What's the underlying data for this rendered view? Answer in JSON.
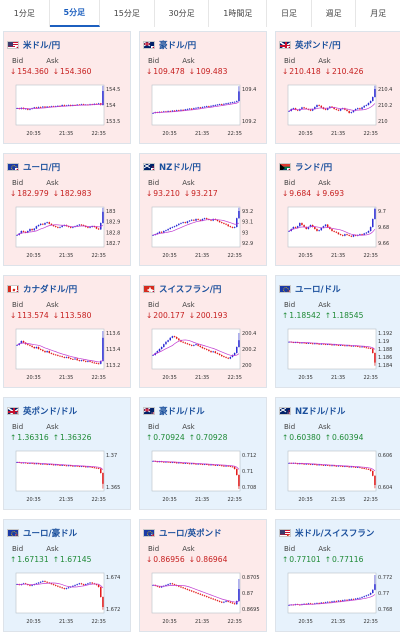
{
  "tabs": [
    {
      "label": "1分足",
      "active": false
    },
    {
      "label": "5分足",
      "active": true
    },
    {
      "label": "15分足",
      "active": false
    },
    {
      "label": "30分足",
      "active": false
    },
    {
      "label": "1時間足",
      "active": false
    },
    {
      "label": "日足",
      "active": false
    },
    {
      "label": "週足",
      "active": false
    },
    {
      "label": "月足",
      "active": false
    }
  ],
  "bid_label": "Bid",
  "ask_label": "Ask",
  "x_ticks": [
    "20:35",
    "21:35",
    "22:35"
  ],
  "colors": {
    "up_text": "#1f8a36",
    "down_text": "#c62020",
    "candle_up": "#2a2ad4",
    "candle_down": "#e21818",
    "ma": "#c03ad0"
  },
  "cards": [
    {
      "name": "米ドル/円",
      "bid": "154.360",
      "ask": "154.360",
      "direction": "down",
      "flag": "us-jp-flag-icon",
      "chart_data": {
        "type": "candlestick",
        "y_ticks": [
          "154.5",
          "154",
          "153.5"
        ],
        "ylim": [
          153.3,
          154.65
        ],
        "shape": [
          0.42,
          0.4,
          0.43,
          0.4,
          0.41,
          0.38,
          0.4,
          0.42,
          0.44,
          0.43,
          0.45,
          0.44,
          0.46,
          0.45,
          0.46,
          0.45,
          0.47,
          0.46,
          0.47,
          0.48,
          0.47,
          0.5,
          0.48,
          0.49,
          0.5,
          0.48,
          0.5,
          0.49,
          0.51,
          0.5,
          0.52,
          0.5,
          0.51,
          0.5,
          0.52,
          0.51,
          0.53,
          0.52,
          0.54,
          0.5,
          0.85
        ],
        "spike": 0.98
      }
    },
    {
      "name": "豪ドル/円",
      "bid": "109.478",
      "ask": "109.483",
      "direction": "down",
      "flag": "au-jp-flag-icon",
      "chart_data": {
        "type": "candlestick",
        "y_ticks": [
          "109.4",
          "109.2"
        ],
        "ylim": [
          109.05,
          109.6
        ],
        "shape": [
          0.3,
          0.32,
          0.31,
          0.33,
          0.32,
          0.34,
          0.33,
          0.35,
          0.34,
          0.36,
          0.35,
          0.37,
          0.36,
          0.38,
          0.37,
          0.39,
          0.4,
          0.41,
          0.4,
          0.42,
          0.43,
          0.44,
          0.43,
          0.45,
          0.46,
          0.47,
          0.46,
          0.48,
          0.49,
          0.5,
          0.51,
          0.52,
          0.51,
          0.53,
          0.54,
          0.55,
          0.56,
          0.57,
          0.58,
          0.6,
          0.84
        ],
        "spike": 0.97
      }
    },
    {
      "name": "英ポンド/円",
      "bid": "210.418",
      "ask": "210.426",
      "direction": "down",
      "flag": "gb-jp-flag-icon",
      "chart_data": {
        "type": "candlestick",
        "y_ticks": [
          "210.4",
          "210.2",
          "210"
        ],
        "ylim": [
          209.85,
          210.55
        ],
        "shape": [
          0.35,
          0.4,
          0.42,
          0.38,
          0.36,
          0.4,
          0.44,
          0.42,
          0.4,
          0.38,
          0.36,
          0.4,
          0.45,
          0.5,
          0.48,
          0.44,
          0.4,
          0.38,
          0.42,
          0.46,
          0.44,
          0.4,
          0.38,
          0.36,
          0.4,
          0.42,
          0.38,
          0.35,
          0.3,
          0.32,
          0.36,
          0.4,
          0.42,
          0.4,
          0.44,
          0.48,
          0.5,
          0.55,
          0.6,
          0.7,
          0.9
        ],
        "spike": 0.98
      }
    },
    {
      "name": "ユーロ/円",
      "bid": "182.979",
      "ask": "182.983",
      "direction": "down",
      "flag": "eu-jp-flag-icon",
      "chart_data": {
        "type": "candlestick",
        "y_ticks": [
          "183",
          "182.9",
          "182.8",
          "182.7"
        ],
        "ylim": [
          182.6,
          183.05
        ],
        "shape": [
          0.3,
          0.34,
          0.4,
          0.38,
          0.36,
          0.4,
          0.45,
          0.42,
          0.46,
          0.52,
          0.55,
          0.58,
          0.56,
          0.6,
          0.62,
          0.58,
          0.55,
          0.52,
          0.5,
          0.48,
          0.5,
          0.53,
          0.55,
          0.52,
          0.5,
          0.48,
          0.5,
          0.52,
          0.54,
          0.56,
          0.55,
          0.53,
          0.5,
          0.48,
          0.5,
          0.52,
          0.5,
          0.46,
          0.44,
          0.6,
          0.88
        ],
        "spike": 0.98
      }
    },
    {
      "name": "NZドル/円",
      "bid": "93.210",
      "ask": "93.217",
      "direction": "down",
      "flag": "nz-jp-flag-icon",
      "chart_data": {
        "type": "candlestick",
        "y_ticks": [
          "93.2",
          "93.1",
          "93",
          "92.9"
        ],
        "ylim": [
          92.82,
          93.27
        ],
        "shape": [
          0.3,
          0.32,
          0.35,
          0.38,
          0.36,
          0.4,
          0.42,
          0.45,
          0.48,
          0.5,
          0.52,
          0.55,
          0.58,
          0.6,
          0.62,
          0.6,
          0.64,
          0.66,
          0.68,
          0.66,
          0.7,
          0.68,
          0.66,
          0.7,
          0.72,
          0.7,
          0.68,
          0.66,
          0.7,
          0.68,
          0.65,
          0.62,
          0.6,
          0.58,
          0.56,
          0.52,
          0.5,
          0.48,
          0.5,
          0.72,
          0.9
        ],
        "spike": 0.98
      }
    },
    {
      "name": "ランド/円",
      "bid": "9.684",
      "ask": "9.693",
      "direction": "down",
      "flag": "za-jp-flag-icon",
      "chart_data": {
        "type": "candlestick",
        "y_ticks": [
          "9.7",
          "9.68",
          "9.66"
        ],
        "ylim": [
          9.645,
          9.71
        ],
        "shape": [
          0.4,
          0.45,
          0.5,
          0.48,
          0.52,
          0.6,
          0.55,
          0.5,
          0.45,
          0.5,
          0.55,
          0.5,
          0.45,
          0.4,
          0.42,
          0.48,
          0.52,
          0.56,
          0.5,
          0.45,
          0.4,
          0.38,
          0.36,
          0.32,
          0.3,
          0.28,
          0.32,
          0.3,
          0.28,
          0.26,
          0.3,
          0.28,
          0.3,
          0.32,
          0.3,
          0.34,
          0.36,
          0.4,
          0.5,
          0.7,
          0.95
        ],
        "spike": 0.98
      }
    },
    {
      "name": "カナダドル/円",
      "bid": "113.574",
      "ask": "113.580",
      "direction": "down",
      "flag": "ca-jp-flag-icon",
      "chart_data": {
        "type": "candlestick",
        "y_ticks": [
          "113.6",
          "113.4",
          "113.2"
        ],
        "ylim": [
          113.1,
          113.7
        ],
        "shape": [
          0.6,
          0.64,
          0.7,
          0.66,
          0.62,
          0.6,
          0.58,
          0.55,
          0.52,
          0.55,
          0.5,
          0.48,
          0.45,
          0.42,
          0.45,
          0.4,
          0.38,
          0.36,
          0.35,
          0.33,
          0.32,
          0.3,
          0.28,
          0.3,
          0.27,
          0.25,
          0.24,
          0.26,
          0.22,
          0.2,
          0.22,
          0.2,
          0.18,
          0.2,
          0.18,
          0.16,
          0.15,
          0.14,
          0.13,
          0.2,
          0.78
        ],
        "spike": 0.95
      }
    },
    {
      "name": "スイスフラン/円",
      "bid": "200.177",
      "ask": "200.193",
      "direction": "down",
      "flag": "ch-jp-flag-icon",
      "chart_data": {
        "type": "candlestick",
        "y_ticks": [
          "200.4",
          "200.2",
          "200"
        ],
        "ylim": [
          199.88,
          200.48
        ],
        "shape": [
          0.35,
          0.4,
          0.45,
          0.5,
          0.55,
          0.62,
          0.68,
          0.72,
          0.78,
          0.82,
          0.8,
          0.76,
          0.72,
          0.68,
          0.66,
          0.64,
          0.62,
          0.6,
          0.58,
          0.6,
          0.62,
          0.58,
          0.55,
          0.52,
          0.5,
          0.48,
          0.45,
          0.42,
          0.44,
          0.4,
          0.38,
          0.35,
          0.32,
          0.3,
          0.28,
          0.26,
          0.3,
          0.35,
          0.4,
          0.55,
          0.72
        ],
        "spike": 0.9
      }
    },
    {
      "name": "ユーロ/ドル",
      "bid": "1.18542",
      "ask": "1.18545",
      "direction": "up",
      "flag": "eu-us-flag-icon",
      "chart_data": {
        "type": "candlestick",
        "y_ticks": [
          "1.192",
          "1.19",
          "1.188",
          "1.186",
          "1.184"
        ],
        "ylim": [
          1.183,
          1.193
        ],
        "shape": [
          0.68,
          0.67,
          0.66,
          0.67,
          0.66,
          0.65,
          0.66,
          0.65,
          0.64,
          0.65,
          0.64,
          0.63,
          0.64,
          0.63,
          0.62,
          0.63,
          0.62,
          0.61,
          0.62,
          0.61,
          0.6,
          0.61,
          0.6,
          0.59,
          0.6,
          0.59,
          0.58,
          0.59,
          0.58,
          0.57,
          0.58,
          0.57,
          0.56,
          0.55,
          0.56,
          0.54,
          0.53,
          0.52,
          0.51,
          0.4,
          0.16
        ],
        "spike": 0.08
      }
    },
    {
      "name": "英ポンド/ドル",
      "bid": "1.36316",
      "ask": "1.36326",
      "direction": "up",
      "flag": "gb-us-flag-icon",
      "chart_data": {
        "type": "candlestick",
        "y_ticks": [
          "1.37",
          "1.365"
        ],
        "ylim": [
          1.3605,
          1.3725
        ],
        "shape": [
          0.72,
          0.71,
          0.7,
          0.71,
          0.7,
          0.69,
          0.7,
          0.69,
          0.68,
          0.69,
          0.68,
          0.67,
          0.68,
          0.67,
          0.66,
          0.67,
          0.66,
          0.65,
          0.66,
          0.65,
          0.64,
          0.65,
          0.64,
          0.63,
          0.64,
          0.63,
          0.62,
          0.63,
          0.62,
          0.61,
          0.62,
          0.61,
          0.6,
          0.61,
          0.6,
          0.59,
          0.58,
          0.57,
          0.56,
          0.45,
          0.18
        ],
        "spike": 0.06
      }
    },
    {
      "name": "豪ドル/ドル",
      "bid": "0.70924",
      "ask": "0.70928",
      "direction": "up",
      "flag": "au-us-flag-icon",
      "chart_data": {
        "type": "candlestick",
        "y_ticks": [
          "0.712",
          "0.71",
          "0.708"
        ],
        "ylim": [
          0.7072,
          0.7128
        ],
        "shape": [
          0.75,
          0.74,
          0.73,
          0.74,
          0.73,
          0.72,
          0.73,
          0.72,
          0.71,
          0.72,
          0.71,
          0.7,
          0.71,
          0.7,
          0.69,
          0.7,
          0.69,
          0.68,
          0.69,
          0.68,
          0.67,
          0.68,
          0.67,
          0.66,
          0.67,
          0.66,
          0.65,
          0.66,
          0.65,
          0.64,
          0.65,
          0.64,
          0.63,
          0.62,
          0.63,
          0.62,
          0.61,
          0.6,
          0.55,
          0.4,
          0.12
        ],
        "spike": 0.05
      }
    },
    {
      "name": "NZドル/ドル",
      "bid": "0.60380",
      "ask": "0.60394",
      "direction": "up",
      "flag": "nz-us-flag-icon",
      "chart_data": {
        "type": "candlestick",
        "y_ticks": [
          "0.606",
          "0.604"
        ],
        "ylim": [
          0.6028,
          0.6072
        ],
        "shape": [
          0.7,
          0.69,
          0.7,
          0.69,
          0.68,
          0.69,
          0.68,
          0.67,
          0.68,
          0.67,
          0.66,
          0.67,
          0.66,
          0.65,
          0.66,
          0.65,
          0.64,
          0.65,
          0.64,
          0.63,
          0.64,
          0.63,
          0.62,
          0.63,
          0.62,
          0.61,
          0.62,
          0.61,
          0.6,
          0.61,
          0.6,
          0.59,
          0.6,
          0.58,
          0.57,
          0.56,
          0.55,
          0.54,
          0.5,
          0.38,
          0.15
        ],
        "spike": 0.07
      }
    },
    {
      "name": "ユーロ/豪ドル",
      "bid": "1.67131",
      "ask": "1.67145",
      "direction": "up",
      "flag": "eu-au-flag-icon",
      "chart_data": {
        "type": "candlestick",
        "y_ticks": [
          "1.674",
          "1.672"
        ],
        "ylim": [
          1.6705,
          1.6752
        ],
        "shape": [
          0.72,
          0.7,
          0.72,
          0.74,
          0.72,
          0.7,
          0.68,
          0.7,
          0.72,
          0.74,
          0.76,
          0.78,
          0.8,
          0.78,
          0.76,
          0.74,
          0.72,
          0.7,
          0.68,
          0.66,
          0.64,
          0.62,
          0.6,
          0.62,
          0.64,
          0.66,
          0.68,
          0.7,
          0.72,
          0.74,
          0.72,
          0.7,
          0.72,
          0.74,
          0.76,
          0.74,
          0.72,
          0.7,
          0.65,
          0.4,
          0.15
        ],
        "spike": 0.08
      }
    },
    {
      "name": "ユーロ/英ポンド",
      "bid": "0.86956",
      "ask": "0.86964",
      "direction": "down",
      "flag": "eu-gb-flag-icon",
      "chart_data": {
        "type": "candlestick",
        "y_ticks": [
          "0.8705",
          "0.87",
          "0.8695"
        ],
        "ylim": [
          0.86925,
          0.87075
        ],
        "shape": [
          0.7,
          0.68,
          0.66,
          0.64,
          0.66,
          0.68,
          0.7,
          0.72,
          0.74,
          0.72,
          0.7,
          0.68,
          0.66,
          0.64,
          0.62,
          0.6,
          0.58,
          0.56,
          0.54,
          0.52,
          0.5,
          0.48,
          0.46,
          0.44,
          0.42,
          0.4,
          0.38,
          0.36,
          0.34,
          0.32,
          0.3,
          0.28,
          0.26,
          0.28,
          0.3,
          0.28,
          0.26,
          0.24,
          0.22,
          0.3,
          0.6
        ],
        "spike": 0.85
      }
    },
    {
      "name": "米ドル/スイスフラン",
      "bid": "0.77101",
      "ask": "0.77116",
      "direction": "up",
      "flag": "us-ch-flag-icon",
      "chart_data": {
        "type": "candlestick",
        "y_ticks": [
          "0.772",
          "0.77",
          "0.768"
        ],
        "ylim": [
          0.767,
          0.7728
        ],
        "shape": [
          0.2,
          0.21,
          0.2,
          0.22,
          0.21,
          0.2,
          0.22,
          0.23,
          0.22,
          0.24,
          0.23,
          0.22,
          0.24,
          0.25,
          0.24,
          0.26,
          0.25,
          0.27,
          0.28,
          0.27,
          0.29,
          0.3,
          0.29,
          0.31,
          0.3,
          0.32,
          0.33,
          0.32,
          0.34,
          0.35,
          0.34,
          0.36,
          0.37,
          0.38,
          0.4,
          0.42,
          0.44,
          0.46,
          0.5,
          0.58,
          0.72
        ],
        "spike": 0.95
      }
    }
  ]
}
